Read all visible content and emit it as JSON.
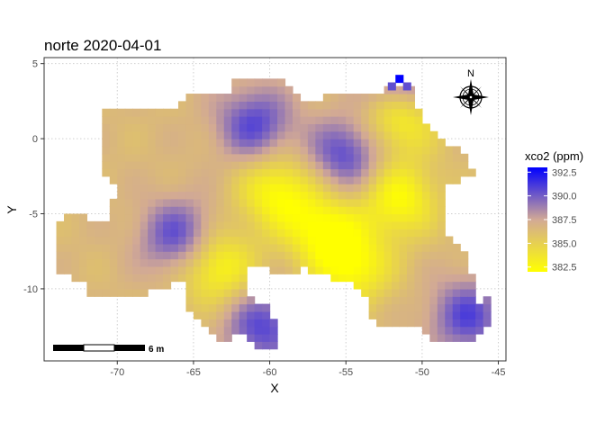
{
  "chart_data": {
    "type": "heatmap",
    "title": "norte 2020-04-01",
    "xlabel": "X",
    "ylabel": "Y",
    "xlim": [
      -74.8,
      -44.5
    ],
    "ylim": [
      -14.8,
      5.4
    ],
    "x_ticks": [
      -70,
      -65,
      -60,
      -55,
      -50,
      -45
    ],
    "x_tick_labels": [
      "-70",
      "-65",
      "-60",
      "-55",
      "-50",
      "-45"
    ],
    "y_ticks": [
      5,
      0,
      -5,
      -10
    ],
    "y_tick_labels": [
      "5",
      "0",
      "-5",
      "-10"
    ],
    "grid": true,
    "cell_size": 0.5,
    "legend": {
      "title": "xco2 (ppm)",
      "position": "right",
      "min": 382,
      "max": 393,
      "breaks": [
        392.5,
        390.0,
        387.5,
        385.0,
        382.5
      ],
      "break_labels": [
        "392.5",
        "390.0",
        "387.5",
        "385.0",
        "382.5"
      ],
      "colors": {
        "low": "#ffff00",
        "mid": "#d2a995",
        "high": "#0000ff"
      }
    },
    "hotspots": [
      {
        "x": -63.5,
        "y": -8.5,
        "label": "low"
      },
      {
        "x": -59.5,
        "y": -3.5,
        "label": "low"
      },
      {
        "x": -51.5,
        "y": 1.5,
        "label": "low"
      },
      {
        "x": -51.5,
        "y": -4,
        "label": "low"
      },
      {
        "x": -54.5,
        "y": -8.5,
        "label": "low"
      },
      {
        "x": -56.5,
        "y": -6,
        "label": "low"
      },
      {
        "x": -55,
        "y": -1,
        "label": "high"
      },
      {
        "x": -47,
        "y": -11.8,
        "label": "high"
      },
      {
        "x": -60.5,
        "y": -12.5,
        "label": "high"
      },
      {
        "x": -66,
        "y": -6.5,
        "label": "high"
      },
      {
        "x": -61,
        "y": 1,
        "label": "high"
      },
      {
        "x": -51.5,
        "y": 4,
        "label": "high"
      }
    ],
    "scale_bar": {
      "label": "6 m"
    },
    "north_arrow": {
      "label": "N"
    }
  }
}
